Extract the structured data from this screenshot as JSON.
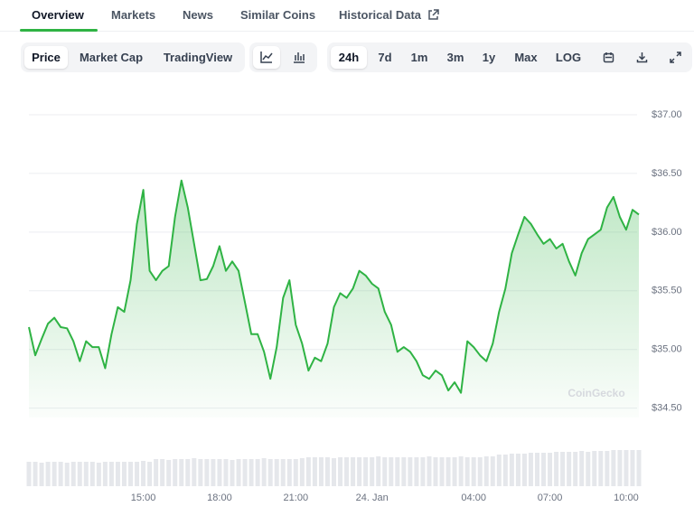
{
  "tabs": [
    "Overview",
    "Markets",
    "News",
    "Similar Coins",
    "Historical Data"
  ],
  "active_tab": 0,
  "toolbar": {
    "views": [
      "Price",
      "Market Cap",
      "TradingView"
    ],
    "active_view": 0,
    "ranges": [
      "24h",
      "7d",
      "1m",
      "3m",
      "1y",
      "Max",
      "LOG"
    ],
    "active_range": 0
  },
  "chart_data": {
    "type": "line",
    "watermark": "CoinGecko",
    "color": "#2fb344",
    "grid": true,
    "xlim": [
      10.5,
      34.5
    ],
    "xticks": [
      {
        "value": 15,
        "label": "15:00"
      },
      {
        "value": 18,
        "label": "18:00"
      },
      {
        "value": 21,
        "label": "21:00"
      },
      {
        "value": 24,
        "label": "24. Jan"
      },
      {
        "value": 28,
        "label": "04:00"
      },
      {
        "value": 31,
        "label": "07:00"
      },
      {
        "value": 34,
        "label": "10:00"
      }
    ],
    "ylim": [
      34.42,
      37.0
    ],
    "yticks": [
      {
        "value": 37,
        "label": "$37.00"
      },
      {
        "value": 36.5,
        "label": "$36.50"
      },
      {
        "value": 36,
        "label": "$36.00"
      },
      {
        "value": 35.5,
        "label": "$35.50"
      },
      {
        "value": 35,
        "label": "$35.00"
      },
      {
        "value": 34.5,
        "label": "$34.50"
      }
    ],
    "x": [
      10.5,
      10.75,
      11,
      11.25,
      11.5,
      11.75,
      12,
      12.25,
      12.5,
      12.75,
      13,
      13.25,
      13.5,
      13.75,
      14,
      14.25,
      14.5,
      14.75,
      15,
      15.25,
      15.5,
      15.75,
      16,
      16.25,
      16.5,
      16.75,
      17,
      17.25,
      17.5,
      17.75,
      18,
      18.25,
      18.5,
      18.75,
      19,
      19.25,
      19.5,
      19.75,
      20,
      20.25,
      20.5,
      20.75,
      21,
      21.25,
      21.5,
      21.75,
      22,
      22.25,
      22.5,
      22.75,
      23,
      23.25,
      23.5,
      23.75,
      24,
      24.25,
      24.5,
      24.75,
      25,
      25.25,
      25.5,
      25.75,
      26,
      26.25,
      26.5,
      26.75,
      27,
      27.25,
      27.5,
      27.75,
      28,
      28.25,
      28.5,
      28.75,
      29,
      29.25,
      29.5,
      29.75,
      30,
      30.25,
      30.5,
      30.75,
      31,
      31.25,
      31.5,
      31.75,
      32,
      32.25,
      32.5,
      32.75,
      33,
      33.25,
      33.5,
      33.75,
      34,
      34.25,
      34.5
    ],
    "values": [
      35.19,
      34.95,
      35.09,
      35.22,
      35.27,
      35.19,
      35.18,
      35.07,
      34.9,
      35.07,
      35.02,
      35.02,
      34.84,
      35.13,
      35.36,
      35.32,
      35.59,
      36.07,
      36.36,
      35.67,
      35.59,
      35.67,
      35.71,
      36.13,
      36.44,
      36.21,
      35.9,
      35.59,
      35.6,
      35.71,
      35.88,
      35.67,
      35.75,
      35.67,
      35.4,
      35.13,
      35.13,
      34.98,
      34.75,
      35.02,
      35.44,
      35.59,
      35.21,
      35.05,
      34.82,
      34.93,
      34.9,
      35.05,
      35.36,
      35.48,
      35.44,
      35.52,
      35.67,
      35.63,
      35.56,
      35.52,
      35.32,
      35.21,
      34.98,
      35.02,
      34.98,
      34.9,
      34.78,
      34.75,
      34.82,
      34.78,
      34.65,
      34.72,
      34.63,
      35.07,
      35.02,
      34.95,
      34.9,
      35.05,
      35.32,
      35.52,
      35.82,
      35.98,
      36.13,
      36.07,
      35.98,
      35.9,
      35.94,
      35.86,
      35.9,
      35.75,
      35.63,
      35.82,
      35.94,
      35.98,
      36.02,
      36.21,
      36.3,
      36.13,
      36.02,
      36.19,
      36.15
    ],
    "volume": {
      "ylim": [
        0,
        100
      ],
      "color": "#e5e7eb",
      "values": [
        27,
        27,
        26,
        27,
        27,
        27,
        26,
        27,
        27,
        27,
        27,
        26,
        27,
        27,
        27,
        27,
        27,
        27,
        28,
        27,
        30,
        30,
        29,
        30,
        30,
        30,
        31,
        30,
        30,
        30,
        30,
        30,
        29,
        30,
        30,
        30,
        30,
        31,
        30,
        30,
        30,
        30,
        30,
        31,
        32,
        32,
        32,
        32,
        31,
        32,
        32,
        32,
        32,
        32,
        32,
        33,
        32,
        32,
        32,
        32,
        32,
        32,
        32,
        33,
        32,
        32,
        32,
        32,
        33,
        32,
        32,
        32,
        33,
        33,
        35,
        35,
        36,
        36,
        36,
        37,
        37,
        37,
        37,
        38,
        38,
        38,
        38,
        39,
        38,
        39,
        39,
        39,
        40,
        40,
        40,
        40,
        40
      ]
    }
  }
}
